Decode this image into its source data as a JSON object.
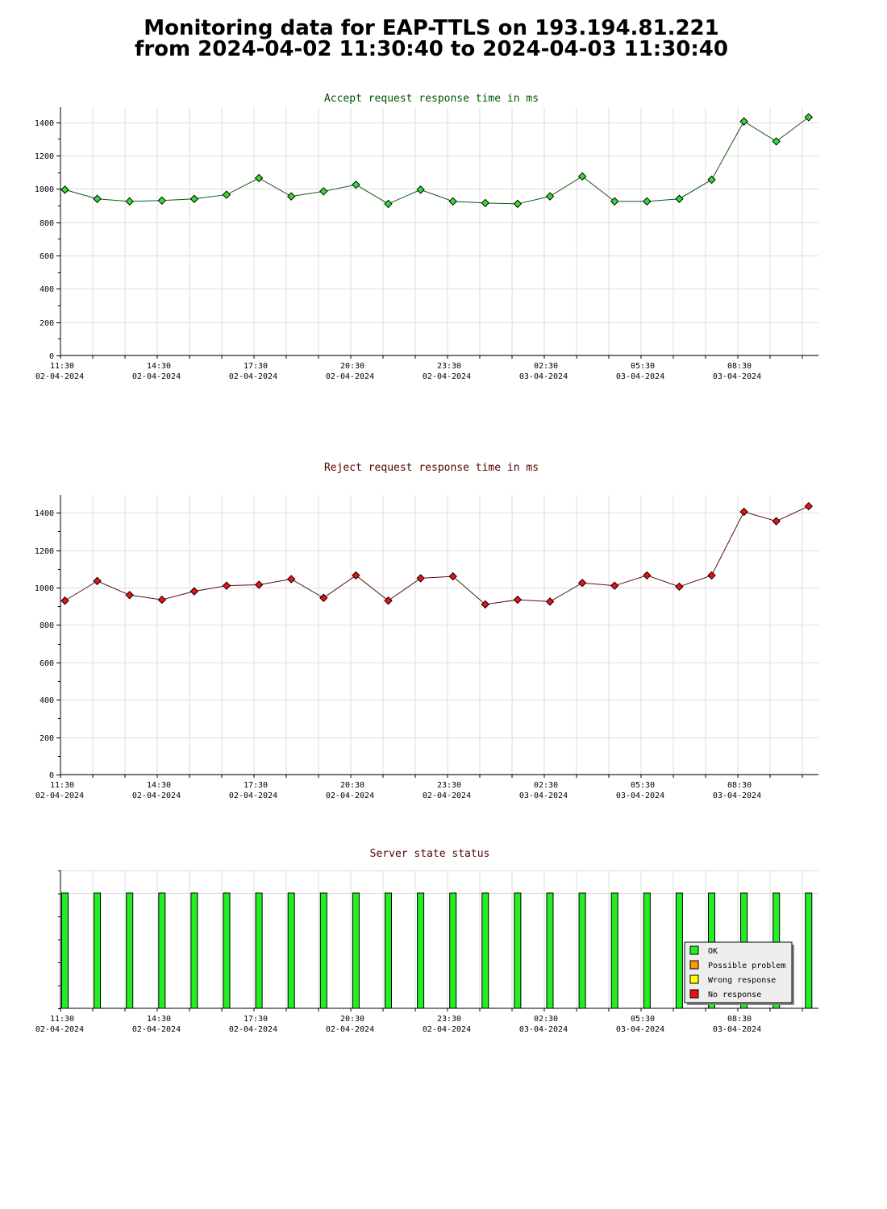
{
  "page": {
    "title_line1": "Monitoring data for EAP-TTLS on 193.194.81.221",
    "title_line2": "from 2024-04-02 11:30:40 to 2024-04-03 11:30:40"
  },
  "colors": {
    "accept_title": "#005500",
    "reject_title": "#550000",
    "status_title": "#550000",
    "accept_marker": "#33dd33",
    "reject_marker": "#ee1111",
    "ok": "#22ee22",
    "possible_problem": "#ff9900",
    "wrong_response": "#ffff00",
    "no_response": "#ee1111",
    "grid": "#dddddd"
  },
  "x_ticks": [
    {
      "time": "11:30",
      "date": "02-04-2024"
    },
    {
      "time": "14:30",
      "date": "02-04-2024"
    },
    {
      "time": "17:30",
      "date": "02-04-2024"
    },
    {
      "time": "20:30",
      "date": "02-04-2024"
    },
    {
      "time": "23:30",
      "date": "02-04-2024"
    },
    {
      "time": "02:30",
      "date": "03-04-2024"
    },
    {
      "time": "05:30",
      "date": "03-04-2024"
    },
    {
      "time": "08:30",
      "date": "03-04-2024"
    }
  ],
  "chart_data": [
    {
      "type": "line",
      "title": "Accept request response time in ms",
      "ylim": [
        0,
        1500
      ],
      "yticks": [
        0,
        200,
        400,
        600,
        800,
        1000,
        1200,
        1400
      ],
      "grid": true,
      "values": [
        995,
        940,
        925,
        930,
        940,
        965,
        1065,
        955,
        985,
        1025,
        910,
        995,
        925,
        915,
        910,
        955,
        1075,
        925,
        925,
        940,
        1055,
        1405,
        1285,
        1430
      ]
    },
    {
      "type": "line",
      "title": "Reject request response time in ms",
      "ylim": [
        0,
        1500
      ],
      "yticks": [
        0,
        200,
        400,
        600,
        800,
        1000,
        1200,
        1400
      ],
      "grid": true,
      "values": [
        930,
        1035,
        960,
        935,
        980,
        1010,
        1015,
        1045,
        945,
        1065,
        930,
        1050,
        1060,
        910,
        935,
        925,
        1025,
        1010,
        1065,
        1005,
        1065,
        1405,
        1355,
        1435
      ]
    },
    {
      "type": "bar",
      "title": "Server state status",
      "grid": true,
      "legend": [
        "OK",
        "Possible problem",
        "Wrong response",
        "No response"
      ],
      "legend_position": "bottom-right",
      "states": [
        "OK",
        "OK",
        "OK",
        "OK",
        "OK",
        "OK",
        "OK",
        "OK",
        "OK",
        "OK",
        "OK",
        "OK",
        "OK",
        "OK",
        "OK",
        "OK",
        "OK",
        "OK",
        "OK",
        "OK",
        "OK",
        "OK",
        "OK",
        "OK"
      ]
    }
  ]
}
